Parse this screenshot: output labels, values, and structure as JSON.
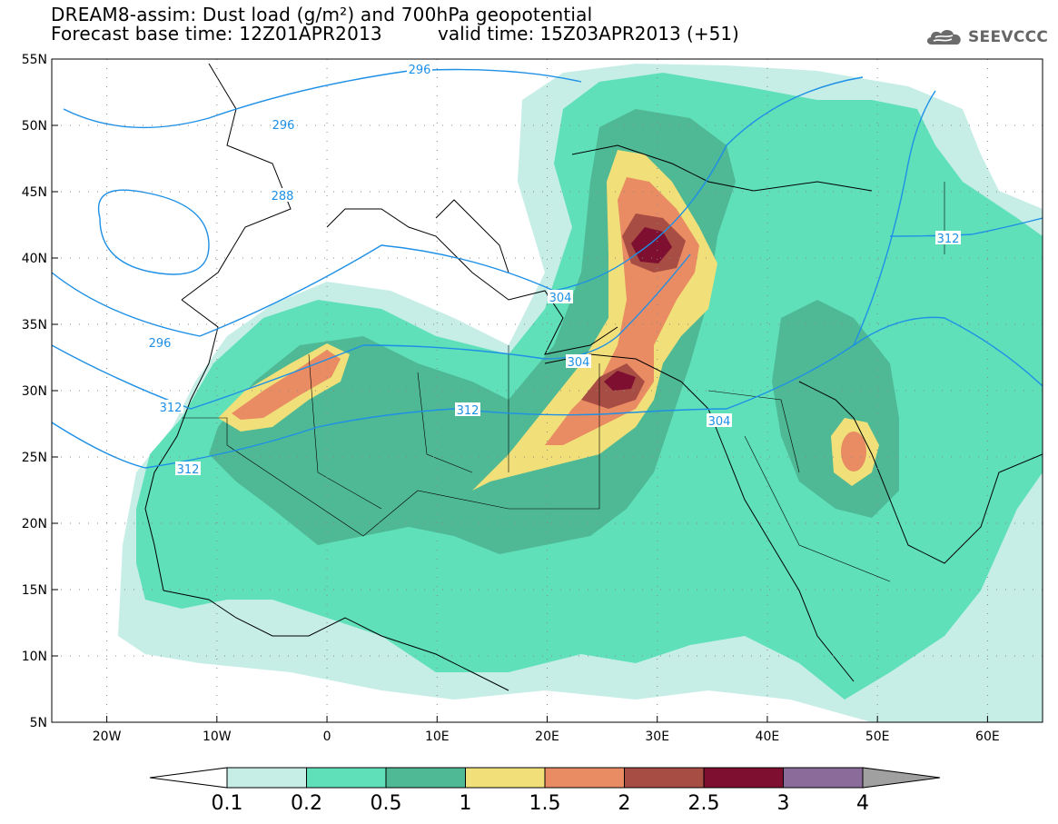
{
  "title": {
    "line1": "DREAM8-assim: Dust load (g/m²) and 700hPa geopotential",
    "line2": "Forecast base time: 12Z01APR2013",
    "valid": "valid time: 15Z03APR2013 (+51)"
  },
  "logo": {
    "text": "SEEVCCC",
    "icon": "cloud-icon"
  },
  "map": {
    "lat_labels": [
      "55N",
      "50N",
      "45N",
      "40N",
      "35N",
      "30N",
      "25N",
      "20N",
      "15N",
      "10N",
      "5N"
    ],
    "lon_labels": [
      "20W",
      "10W",
      "0",
      "10E",
      "20E",
      "30E",
      "40E",
      "50E",
      "60E"
    ],
    "contour_labels": [
      "296",
      "288",
      "296",
      "296",
      "304",
      "304",
      "312",
      "312",
      "312",
      "304",
      "312"
    ]
  },
  "legend": {
    "tick_labels": [
      "0.1",
      "0.2",
      "0.5",
      "1",
      "1.5",
      "2",
      "2.5",
      "3",
      "4"
    ],
    "colors": [
      "#c6eee7",
      "#5fe0b9",
      "#4fb894",
      "#f1e07a",
      "#e98b63",
      "#a84d44",
      "#7e0f30",
      "#8b6b9a"
    ],
    "low_color": "#ffffff",
    "high_color": "#a0a0a0"
  },
  "chart_data": {
    "type": "heatmap",
    "field": "Dust load (g/m²)",
    "contour_field": "700hPa geopotential",
    "xlim": [
      -25,
      65
    ],
    "ylim": [
      5,
      55
    ],
    "contour_levels": [
      288,
      296,
      304,
      312
    ],
    "color_levels": [
      0.1,
      0.2,
      0.5,
      1,
      1.5,
      2,
      2.5,
      3,
      4
    ],
    "grid": "dotted"
  }
}
